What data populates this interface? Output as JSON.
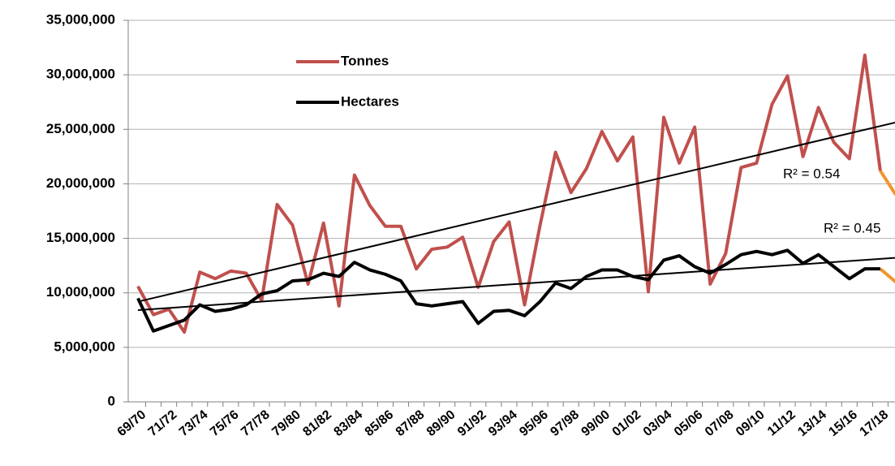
{
  "chart_data": {
    "type": "line",
    "categories": [
      "69/70",
      null,
      "71/72",
      null,
      "73/74",
      null,
      "75/76",
      null,
      "77/78",
      null,
      "79/80",
      null,
      "81/82",
      null,
      "83/84",
      null,
      "85/86",
      null,
      "87/88",
      null,
      "89/90",
      null,
      "91/92",
      null,
      "93/94",
      null,
      "95/96",
      null,
      "97/98",
      null,
      "99/00",
      null,
      "01/02",
      null,
      "03/04",
      null,
      "05/06",
      null,
      "07/08",
      null,
      "09/10",
      null,
      "11/12",
      null,
      "13/14",
      null,
      "15/16",
      null,
      "17/18",
      null
    ],
    "series": [
      {
        "name": "Tonnes",
        "color": "#c0504d",
        "trend_label": "R² = 0.54",
        "values": [
          10600000,
          8000000,
          8500000,
          6400000,
          11900000,
          11300000,
          12000000,
          11800000,
          9300000,
          18100000,
          16200000,
          10800000,
          16400000,
          8800000,
          20800000,
          18000000,
          16100000,
          16100000,
          12200000,
          14000000,
          14200000,
          15100000,
          10500000,
          14700000,
          16500000,
          8900000,
          16200000,
          22900000,
          19200000,
          21400000,
          24800000,
          22100000,
          24300000,
          10100000,
          26100000,
          21900000,
          25200000,
          10800000,
          13600000,
          21500000,
          21900000,
          27300000,
          29900000,
          22500000,
          27000000,
          23800000,
          22300000,
          31800000,
          21200000,
          null
        ]
      },
      {
        "name": "Hectares",
        "color": "#000000",
        "trend_label": "R² = 0.45",
        "values": [
          9500000,
          6500000,
          7000000,
          7500000,
          8900000,
          8300000,
          8500000,
          8900000,
          9900000,
          10200000,
          11100000,
          11200000,
          11800000,
          11500000,
          12800000,
          12100000,
          11700000,
          11100000,
          9000000,
          8800000,
          9000000,
          9200000,
          7200000,
          8300000,
          8400000,
          7900000,
          9200000,
          10900000,
          10400000,
          11500000,
          12100000,
          12100000,
          11500000,
          11200000,
          13000000,
          13400000,
          12400000,
          11800000,
          12600000,
          13500000,
          13800000,
          13500000,
          13900000,
          12700000,
          13500000,
          12400000,
          11300000,
          12200000,
          12200000,
          null
        ]
      }
    ],
    "forecast_series": [
      {
        "color": "#f0962e",
        "values": [
          null,
          null,
          null,
          null,
          null,
          null,
          null,
          null,
          null,
          null,
          null,
          null,
          null,
          null,
          null,
          null,
          null,
          null,
          null,
          null,
          null,
          null,
          null,
          null,
          null,
          null,
          null,
          null,
          null,
          null,
          null,
          null,
          null,
          null,
          null,
          null,
          null,
          null,
          null,
          null,
          null,
          null,
          null,
          null,
          null,
          null,
          null,
          null,
          21200000,
          19000000
        ]
      },
      {
        "color": "#f0962e",
        "values": [
          null,
          null,
          null,
          null,
          null,
          null,
          null,
          null,
          null,
          null,
          null,
          null,
          null,
          null,
          null,
          null,
          null,
          null,
          null,
          null,
          null,
          null,
          null,
          null,
          null,
          null,
          null,
          null,
          null,
          null,
          null,
          null,
          null,
          null,
          null,
          null,
          null,
          null,
          null,
          null,
          null,
          null,
          null,
          null,
          null,
          null,
          null,
          null,
          12200000,
          11000000
        ]
      }
    ],
    "ylim": [
      0,
      35000000
    ],
    "yticks": [
      {
        "value": 0,
        "label": "0"
      },
      {
        "value": 5000000,
        "label": "5,000,000"
      },
      {
        "value": 10000000,
        "label": "10,000,000"
      },
      {
        "value": 15000000,
        "label": "15,000,000"
      },
      {
        "value": 20000000,
        "label": "20,000,000"
      },
      {
        "value": 25000000,
        "label": "25,000,000"
      },
      {
        "value": 30000000,
        "label": "30,000,000"
      },
      {
        "value": 35000000,
        "label": "35,000,000"
      }
    ],
    "grid": true
  }
}
